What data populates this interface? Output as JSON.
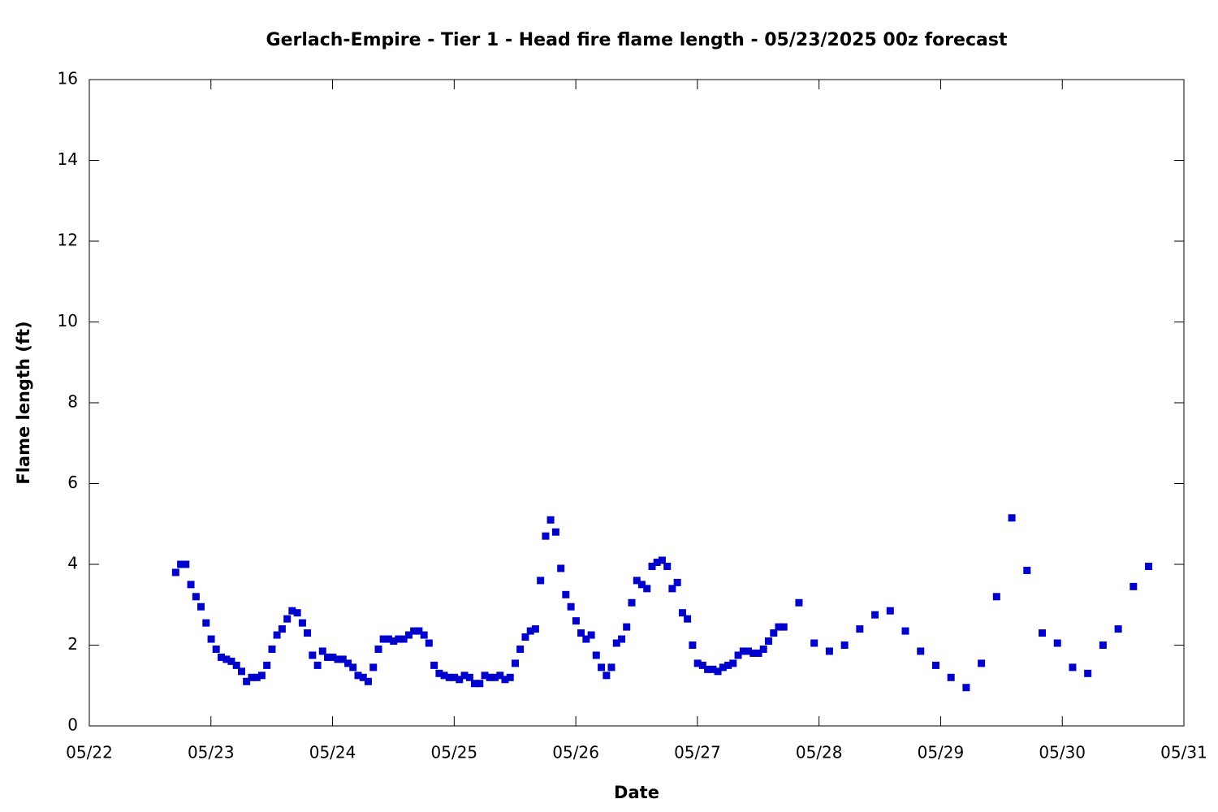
{
  "chart_data": {
    "type": "scatter",
    "title": "Gerlach-Empire - Tier 1 - Head fire flame length - 05/23/2025 00z forecast",
    "x_label": "Date",
    "y_label": "Flame length (ft)",
    "color": "#0000cc",
    "x": [
      22.71,
      22.752,
      22.793,
      22.835,
      22.877,
      22.918,
      22.96,
      23.002,
      23.043,
      23.085,
      23.127,
      23.168,
      23.21,
      23.252,
      23.293,
      23.335,
      23.377,
      23.418,
      23.46,
      23.502,
      23.543,
      23.585,
      23.627,
      23.668,
      23.71,
      23.752,
      23.793,
      23.835,
      23.877,
      23.918,
      23.96,
      24.002,
      24.043,
      24.085,
      24.127,
      24.168,
      24.21,
      24.252,
      24.293,
      24.335,
      24.377,
      24.418,
      24.46,
      24.502,
      24.543,
      24.585,
      24.627,
      24.668,
      24.71,
      24.752,
      24.793,
      24.835,
      24.877,
      24.918,
      24.96,
      25.002,
      25.043,
      25.085,
      25.127,
      25.168,
      25.21,
      25.252,
      25.293,
      25.335,
      25.377,
      25.418,
      25.46,
      25.502,
      25.543,
      25.585,
      25.627,
      25.668,
      25.71,
      25.752,
      25.793,
      25.835,
      25.877,
      25.918,
      25.96,
      26.002,
      26.043,
      26.085,
      26.127,
      26.168,
      26.21,
      26.252,
      26.293,
      26.335,
      26.377,
      26.418,
      26.46,
      26.502,
      26.543,
      26.585,
      26.627,
      26.668,
      26.71,
      26.752,
      26.793,
      26.835,
      26.877,
      26.918,
      26.96,
      27.002,
      27.043,
      27.085,
      27.127,
      27.168,
      27.21,
      27.252,
      27.293,
      27.335,
      27.377,
      27.418,
      27.46,
      27.502,
      27.543,
      27.585,
      27.627,
      27.668,
      27.71,
      27.835,
      27.96,
      28.085,
      28.21,
      28.335,
      28.46,
      28.585,
      28.71,
      28.835,
      28.96,
      29.085,
      29.21,
      29.335,
      29.46,
      29.585,
      29.71,
      29.835,
      29.96,
      30.085,
      30.21,
      30.335,
      30.46,
      30.585,
      30.71
    ],
    "values": [
      3.8,
      4.0,
      4.0,
      3.5,
      3.2,
      2.95,
      2.55,
      2.15,
      1.9,
      1.7,
      1.65,
      1.6,
      1.5,
      1.35,
      1.1,
      1.2,
      1.2,
      1.25,
      1.5,
      1.9,
      2.25,
      2.4,
      2.65,
      2.85,
      2.8,
      2.55,
      2.3,
      1.75,
      1.5,
      1.85,
      1.7,
      1.7,
      1.65,
      1.65,
      1.55,
      1.45,
      1.25,
      1.2,
      1.1,
      1.45,
      1.9,
      2.15,
      2.15,
      2.1,
      2.15,
      2.15,
      2.25,
      2.35,
      2.35,
      2.25,
      2.05,
      1.5,
      1.3,
      1.25,
      1.2,
      1.2,
      1.15,
      1.25,
      1.2,
      1.05,
      1.05,
      1.25,
      1.2,
      1.2,
      1.25,
      1.15,
      1.2,
      1.55,
      1.9,
      2.2,
      2.35,
      2.4,
      3.6,
      4.7,
      5.1,
      4.8,
      3.9,
      3.25,
      2.95,
      2.6,
      2.3,
      2.15,
      2.25,
      1.75,
      1.45,
      1.25,
      1.45,
      2.05,
      2.15,
      2.45,
      3.05,
      3.6,
      3.5,
      3.4,
      3.95,
      4.05,
      4.1,
      3.95,
      3.4,
      3.55,
      2.8,
      2.65,
      2.0,
      1.55,
      1.5,
      1.4,
      1.4,
      1.35,
      1.45,
      1.5,
      1.55,
      1.75,
      1.85,
      1.85,
      1.8,
      1.8,
      1.9,
      2.1,
      2.3,
      2.45,
      2.45,
      3.05,
      2.05,
      1.85,
      2.0,
      2.4,
      2.75,
      2.85,
      2.35,
      1.85,
      1.5,
      1.2,
      0.95,
      1.55,
      3.2,
      5.15,
      3.85,
      2.3,
      2.05,
      1.45,
      1.3,
      2.0,
      2.4,
      3.45,
      3.95
    ],
    "xlim": [
      22,
      31
    ],
    "xticks": [
      {
        "value": 22,
        "label": "05/22"
      },
      {
        "value": 23,
        "label": "05/23"
      },
      {
        "value": 24,
        "label": "05/24"
      },
      {
        "value": 25,
        "label": "05/25"
      },
      {
        "value": 26,
        "label": "05/26"
      },
      {
        "value": 27,
        "label": "05/27"
      },
      {
        "value": 28,
        "label": "05/28"
      },
      {
        "value": 29,
        "label": "05/29"
      },
      {
        "value": 30,
        "label": "05/30"
      },
      {
        "value": 31,
        "label": "05/31"
      }
    ],
    "ylim": [
      0,
      16
    ],
    "yticks": [
      0,
      2,
      4,
      6,
      8,
      10,
      12,
      14,
      16
    ]
  }
}
